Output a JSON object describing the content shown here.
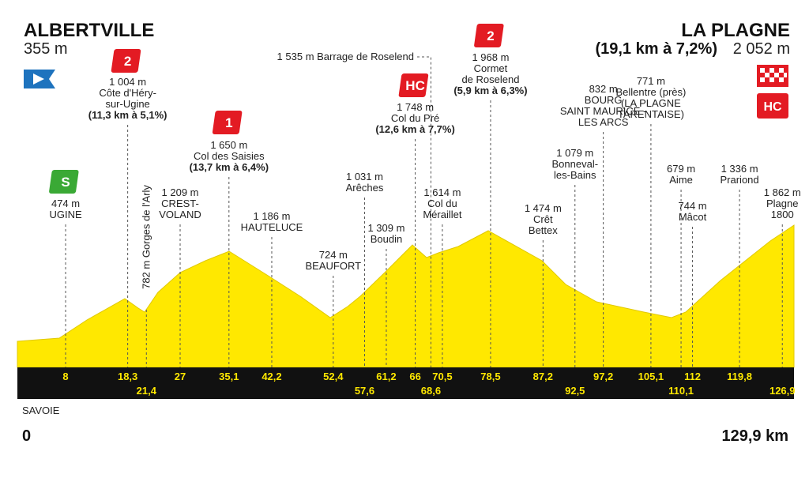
{
  "start": {
    "name": "ALBERTVILLE",
    "altitude": "355 m"
  },
  "finish": {
    "name": "LA PLAGNE",
    "climb": "(19,1 km à 7,2%)",
    "altitude": "2 052 m",
    "category": "HC"
  },
  "points": [
    {
      "lines": [
        "474 m",
        "UGINE"
      ],
      "km": "8",
      "category": "S"
    },
    {
      "lines": [
        "1 004 m",
        "Côte d'Héry-",
        "sur-Ugine"
      ],
      "climb": "(11,3 km à 5,1%)",
      "km": "18,3",
      "category": "2"
    },
    {
      "lines": [
        "782 m Gorges de l'Arly"
      ],
      "km": "21,4"
    },
    {
      "lines": [
        "1 209 m",
        "CREST-",
        "VOLAND"
      ],
      "km": "27"
    },
    {
      "lines": [
        "1 650 m",
        "Col des Saisies"
      ],
      "climb": "(13,7 km à 6,4%)",
      "km": "35,1",
      "category": "1"
    },
    {
      "lines": [
        "1 186 m",
        "HAUTELUCE"
      ],
      "km": "42,2"
    },
    {
      "lines": [
        "724 m",
        "BEAUFORT"
      ],
      "km": "52,4"
    },
    {
      "lines": [
        "1 031 m",
        "Arêches"
      ],
      "km": "57,6"
    },
    {
      "lines": [
        "1 309 m",
        "Boudin"
      ],
      "km": "61,2"
    },
    {
      "lines": [
        "1 748 m",
        "Col du Pré"
      ],
      "climb": "(12,6 km à 7,7%)",
      "km": "66",
      "category": "HC"
    },
    {
      "lines": [
        "1 535 m Barrage de Roselend"
      ],
      "km": "68,6"
    },
    {
      "lines": [
        "1 614 m",
        "Col du",
        "Méraillet"
      ],
      "km": "70,5"
    },
    {
      "lines": [
        "1 968 m",
        "Cormet",
        "de Roselend"
      ],
      "climb": "(5,9 km à 6,3%)",
      "km": "78,5",
      "category": "2"
    },
    {
      "lines": [
        "1 474 m",
        "Crêt",
        "Bettex"
      ],
      "km": "87,2"
    },
    {
      "lines": [
        "1 079 m",
        "Bonneval-",
        "les-Bains"
      ],
      "km": "92,5"
    },
    {
      "lines": [
        "832 m",
        "BOURG",
        "SAINT MAURICE -",
        "LES ARCS"
      ],
      "km": "97,2"
    },
    {
      "lines": [
        "771 m",
        "Bellentre (près)",
        "(LA PLAGNE",
        "TARENTAISE)"
      ],
      "km": "105,1"
    },
    {
      "lines": [
        "679 m",
        "Aime"
      ],
      "km": "110,1"
    },
    {
      "lines": [
        "744 m",
        "Mâcot"
      ],
      "km": "112"
    },
    {
      "lines": [
        "1 336 m",
        "Prariond"
      ],
      "km": "119,8"
    },
    {
      "lines": [
        "1 862 m",
        "Plagne",
        "1800"
      ],
      "km": "126,9"
    }
  ],
  "region": "SAVOIE",
  "distance_start": "0",
  "distance_end": "129,9 km"
}
